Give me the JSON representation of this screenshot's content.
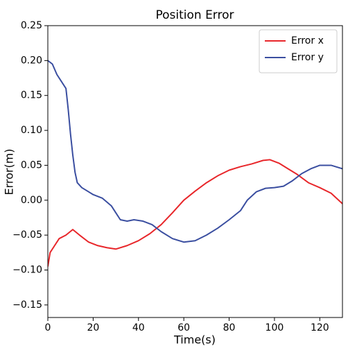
{
  "chart_data": {
    "type": "line",
    "title": "Position Error",
    "x_label": "Time(s)",
    "y_label": "Error(m)",
    "xlim": [
      0,
      130
    ],
    "ylim": [
      -0.168,
      0.25
    ],
    "xticks": [
      0,
      20,
      40,
      60,
      80,
      100,
      120
    ],
    "yticks": [
      {
        "value": -0.15,
        "label": "−0.15"
      },
      {
        "value": -0.1,
        "label": "−0.10"
      },
      {
        "value": -0.05,
        "label": "−0.05"
      },
      {
        "value": 0,
        "label": "0.00"
      },
      {
        "value": 0.05,
        "label": "0.05"
      },
      {
        "value": 0.1,
        "label": "0.10"
      },
      {
        "value": 0.15,
        "label": "0.15"
      },
      {
        "value": 0.2,
        "label": "0.20"
      },
      {
        "value": 0.25,
        "label": "0.25"
      }
    ],
    "legend": "upper right",
    "series": [
      {
        "name": "Error x",
        "color": "#e8262a",
        "x": [
          0,
          1,
          3,
          5,
          8,
          11,
          14,
          18,
          22,
          26,
          30,
          35,
          40,
          45,
          50,
          55,
          60,
          65,
          70,
          75,
          80,
          85,
          90,
          95,
          98,
          102,
          106,
          110,
          115,
          120,
          125,
          130
        ],
        "values": [
          -0.095,
          -0.075,
          -0.065,
          -0.055,
          -0.05,
          -0.042,
          -0.05,
          -0.06,
          -0.065,
          -0.068,
          -0.07,
          -0.065,
          -0.058,
          -0.048,
          -0.035,
          -0.018,
          0.0,
          0.013,
          0.025,
          0.035,
          0.043,
          0.048,
          0.052,
          0.057,
          0.058,
          0.053,
          0.045,
          0.037,
          0.025,
          0.018,
          0.01,
          -0.005
        ]
      },
      {
        "name": "Error y",
        "color": "#3a4ea0",
        "x": [
          0,
          2,
          4,
          6,
          8,
          9,
          10,
          11,
          12,
          13,
          15,
          18,
          20,
          24,
          28,
          30,
          32,
          35,
          38,
          42,
          46,
          50,
          55,
          60,
          65,
          70,
          75,
          80,
          85,
          88,
          92,
          96,
          100,
          104,
          108,
          112,
          116,
          120,
          125,
          130
        ],
        "values": [
          0.2,
          0.195,
          0.18,
          0.17,
          0.16,
          0.13,
          0.095,
          0.065,
          0.04,
          0.025,
          0.018,
          0.012,
          0.008,
          0.003,
          -0.008,
          -0.018,
          -0.028,
          -0.03,
          -0.028,
          -0.03,
          -0.035,
          -0.045,
          -0.055,
          -0.06,
          -0.058,
          -0.05,
          -0.04,
          -0.028,
          -0.015,
          0.0,
          0.012,
          0.017,
          0.018,
          0.02,
          0.028,
          0.038,
          0.045,
          0.05,
          0.05,
          0.045
        ]
      }
    ]
  }
}
